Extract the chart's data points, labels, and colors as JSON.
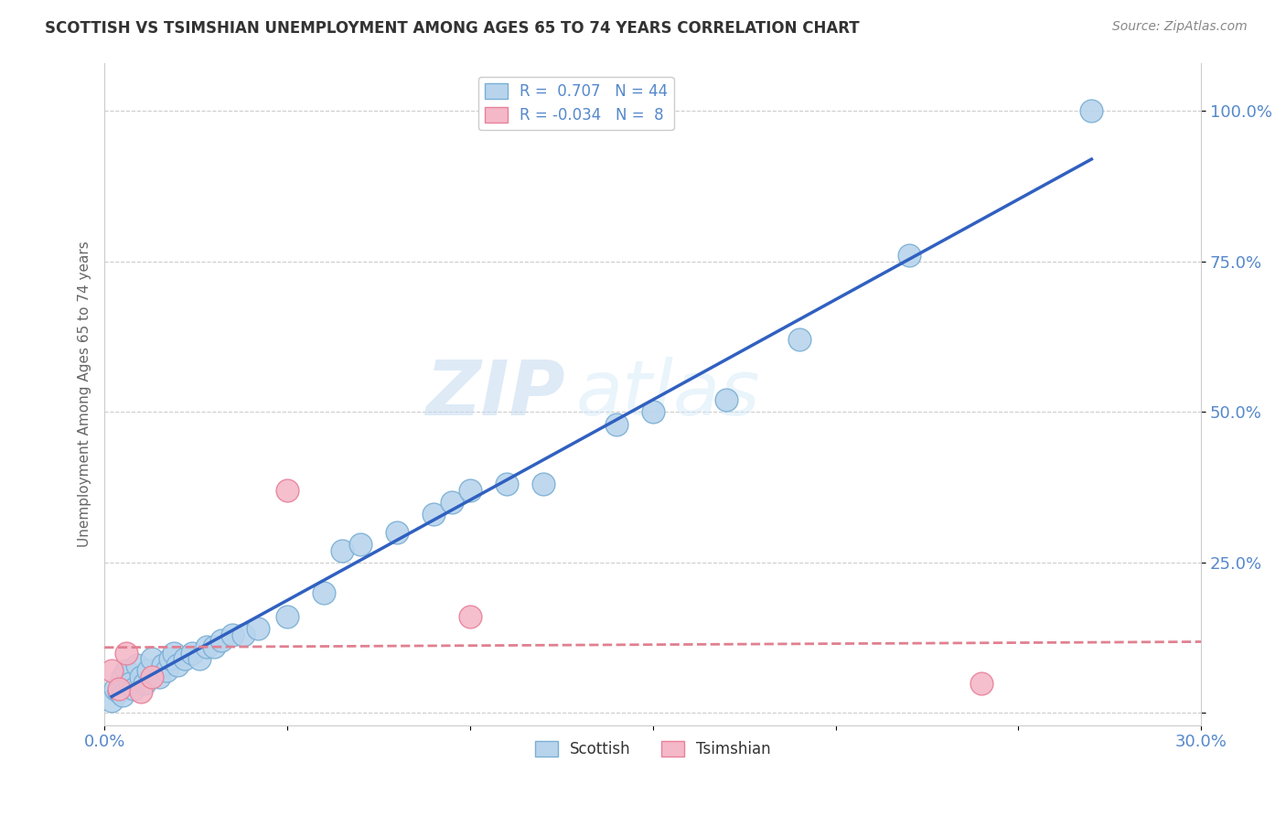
{
  "title": "SCOTTISH VS TSIMSHIAN UNEMPLOYMENT AMONG AGES 65 TO 74 YEARS CORRELATION CHART",
  "source": "Source: ZipAtlas.com",
  "ylabel": "Unemployment Among Ages 65 to 74 years",
  "xlim": [
    0.0,
    0.3
  ],
  "ylim": [
    -0.02,
    1.08
  ],
  "xticks": [
    0.0,
    0.05,
    0.1,
    0.15,
    0.2,
    0.25,
    0.3
  ],
  "xticklabels": [
    "0.0%",
    "",
    "",
    "",
    "",
    "",
    "30.0%"
  ],
  "yticks": [
    0.0,
    0.25,
    0.5,
    0.75,
    1.0
  ],
  "yticklabels": [
    "",
    "25.0%",
    "50.0%",
    "75.0%",
    "100.0%"
  ],
  "scottish_R": 0.707,
  "scottish_N": 44,
  "tsimshian_R": -0.034,
  "tsimshian_N": 8,
  "scottish_color": "#b8d4ed",
  "scottish_edge_color": "#7aafd4",
  "tsimshian_color": "#f4b8c8",
  "tsimshian_edge_color": "#e8809a",
  "trendline_scottish_color": "#3060c0",
  "trendline_tsimshian_color": "#e08090",
  "scottish_x": [
    0.002,
    0.003,
    0.004,
    0.005,
    0.005,
    0.006,
    0.007,
    0.008,
    0.009,
    0.01,
    0.011,
    0.012,
    0.013,
    0.015,
    0.016,
    0.017,
    0.018,
    0.019,
    0.02,
    0.022,
    0.024,
    0.026,
    0.028,
    0.03,
    0.032,
    0.035,
    0.038,
    0.042,
    0.05,
    0.06,
    0.065,
    0.07,
    0.08,
    0.09,
    0.095,
    0.1,
    0.11,
    0.12,
    0.14,
    0.15,
    0.17,
    0.19,
    0.22,
    0.27
  ],
  "scottish_y": [
    0.02,
    0.04,
    0.035,
    0.06,
    0.03,
    0.07,
    0.05,
    0.04,
    0.08,
    0.06,
    0.05,
    0.07,
    0.09,
    0.06,
    0.08,
    0.07,
    0.09,
    0.1,
    0.08,
    0.09,
    0.1,
    0.09,
    0.11,
    0.11,
    0.12,
    0.13,
    0.13,
    0.14,
    0.16,
    0.2,
    0.27,
    0.28,
    0.3,
    0.33,
    0.35,
    0.37,
    0.38,
    0.38,
    0.48,
    0.5,
    0.52,
    0.62,
    0.76,
    1.0
  ],
  "tsimshian_x": [
    0.002,
    0.004,
    0.006,
    0.01,
    0.013,
    0.05,
    0.1,
    0.24
  ],
  "tsimshian_y": [
    0.07,
    0.04,
    0.1,
    0.035,
    0.06,
    0.37,
    0.16,
    0.05
  ],
  "scottish_trendline_x": [
    0.002,
    0.27
  ],
  "tsimshian_trendline_x": [
    0.0,
    0.3
  ],
  "watermark_line1": "ZIP",
  "watermark_line2": "atlas",
  "background_color": "#ffffff",
  "grid_color": "#cccccc",
  "grid_linestyle": "--",
  "axis_label_color": "#5588cc",
  "title_color": "#333333",
  "source_color": "#888888"
}
